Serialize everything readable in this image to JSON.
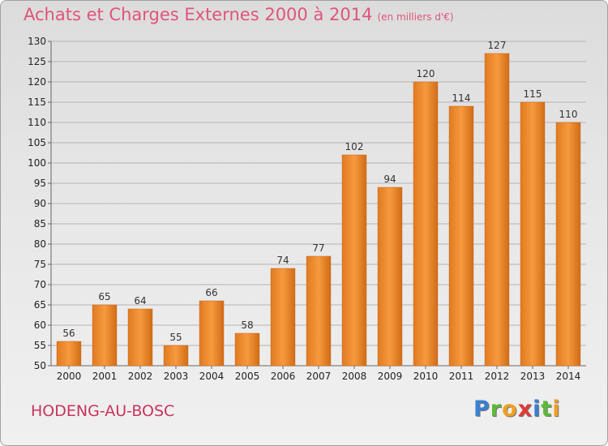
{
  "chart_data": {
    "type": "bar",
    "title": "Achats et Charges Externes 2000 à 2014",
    "subtitle": "(en milliers d'€)",
    "xlabel": "",
    "ylabel": "",
    "categories": [
      "2000",
      "2001",
      "2002",
      "2003",
      "2004",
      "2005",
      "2006",
      "2007",
      "2008",
      "2009",
      "2010",
      "2011",
      "2012",
      "2013",
      "2014"
    ],
    "values": [
      56,
      65,
      64,
      55,
      66,
      58,
      74,
      77,
      102,
      94,
      120,
      114,
      127,
      115,
      110
    ],
    "ylim": [
      50,
      130
    ],
    "yticks": [
      "50",
      "55",
      "60",
      "65",
      "70",
      "75",
      "80",
      "85",
      "90",
      "95",
      "100",
      "105",
      "110",
      "115",
      "120",
      "125",
      "130"
    ],
    "grid": true,
    "bar_color": "#f08a2a"
  },
  "footer": {
    "commune": "HODENG-AU-BOSC"
  },
  "logo": {
    "letters": [
      {
        "ch": "P",
        "color": "#3a7fd0"
      },
      {
        "ch": "r",
        "color": "#5cb83a"
      },
      {
        "ch": "o",
        "color": "#f0a020"
      },
      {
        "ch": "x",
        "color": "#e03a3a"
      },
      {
        "ch": "i",
        "color": "#3a7fd0"
      },
      {
        "ch": "t",
        "color": "#5cb83a"
      },
      {
        "ch": "i",
        "color": "#f0a020"
      }
    ]
  }
}
